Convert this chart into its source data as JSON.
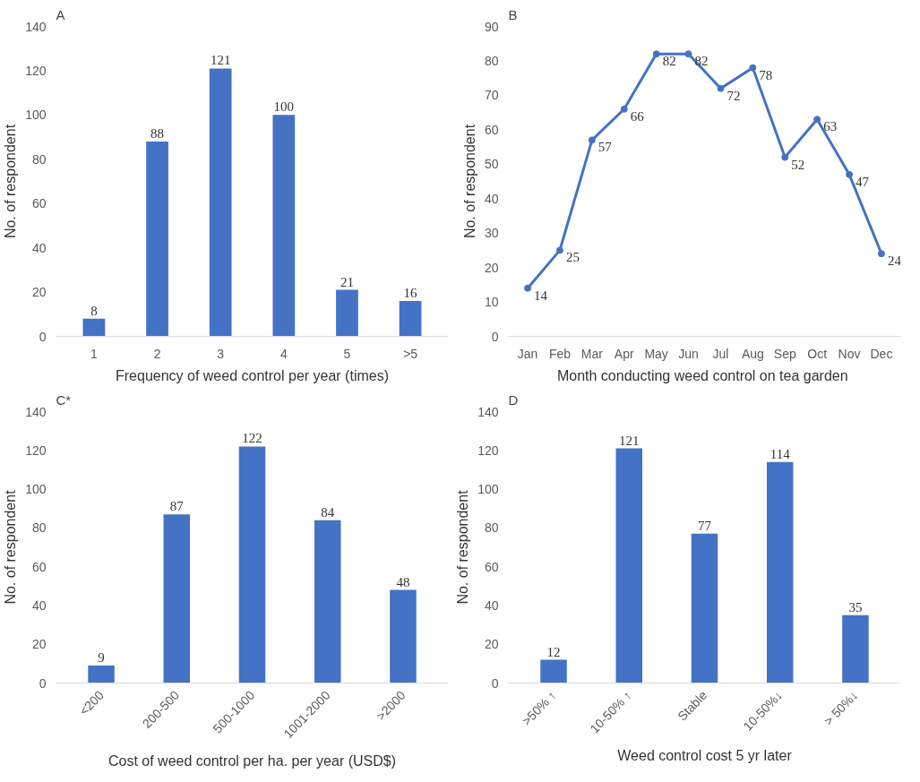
{
  "chart_data": [
    {
      "type": "bar",
      "title": "A",
      "xlabel": "Frequency of weed control per year (times)",
      "ylabel": "No. of respondent",
      "categories": [
        "1",
        "2",
        "3",
        "4",
        "5",
        ">5"
      ],
      "values": [
        8,
        88,
        121,
        100,
        21,
        16
      ],
      "color": "#4472c4",
      "ylim": [
        0,
        140
      ],
      "yticks": [
        0,
        20,
        40,
        60,
        80,
        100,
        120,
        140
      ],
      "data_labels": true
    },
    {
      "type": "line",
      "title": "B",
      "xlabel": "Month conducting  weed control on tea garden",
      "ylabel": "No. of respondent",
      "categories": [
        "Jan",
        "Feb",
        "Mar",
        "Apr",
        "May",
        "Jun",
        "Jul",
        "Aug",
        "Sep",
        "Oct",
        "Nov",
        "Dec"
      ],
      "values": [
        14,
        25,
        57,
        66,
        82,
        82,
        72,
        78,
        52,
        63,
        47,
        24
      ],
      "color": "#4472c4",
      "marker": "circle",
      "ylim": [
        0,
        90
      ],
      "yticks": [
        0,
        10,
        20,
        30,
        40,
        50,
        60,
        70,
        80,
        90
      ],
      "data_labels": true
    },
    {
      "type": "bar",
      "title": "C*",
      "xlabel": "Cost of weed control per ha. per year (USD$)",
      "ylabel": "No. of respondent",
      "categories": [
        "<200",
        "200-500",
        "500-1000",
        "1001-2000",
        ">2000"
      ],
      "values": [
        9,
        87,
        122,
        84,
        48
      ],
      "color": "#4472c4",
      "ylim": [
        0,
        140
      ],
      "yticks": [
        0,
        20,
        40,
        60,
        80,
        100,
        120,
        140
      ],
      "data_labels": true
    },
    {
      "type": "bar",
      "title": "D",
      "xlabel": "Weed control cost 5 yr later",
      "ylabel": "No. of respondent",
      "categories": [
        ">50% ↑",
        "10-50% ↑",
        "Stable",
        "10-50%↓",
        "> 50%↓"
      ],
      "values": [
        12,
        121,
        77,
        114,
        35
      ],
      "color": "#4472c4",
      "ylim": [
        0,
        140
      ],
      "yticks": [
        0,
        20,
        40,
        60,
        80,
        100,
        120,
        140
      ],
      "data_labels": true
    }
  ]
}
